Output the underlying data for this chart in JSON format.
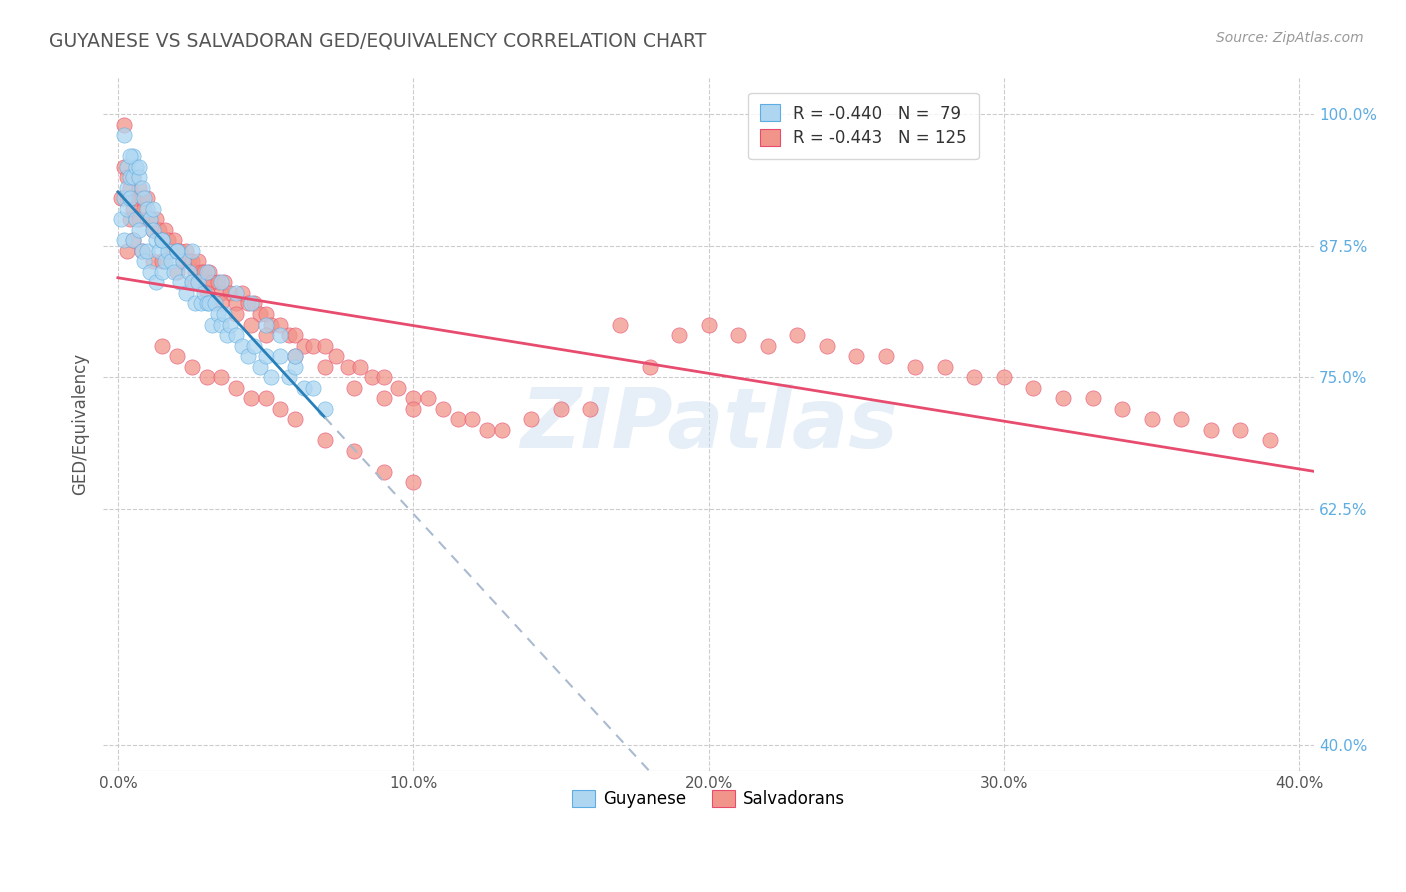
{
  "title": "GUYANESE VS SALVADORAN GED/EQUIVALENCY CORRELATION CHART",
  "source": "Source: ZipAtlas.com",
  "ylabel": "GED/Equivalency",
  "xlim": [
    -0.005,
    0.405
  ],
  "ylim": [
    0.375,
    1.035
  ],
  "xticks": [
    0.0,
    0.05,
    0.1,
    0.15,
    0.2,
    0.25,
    0.3,
    0.35,
    0.4
  ],
  "xticklabels_major": [
    "0.0%",
    "",
    "10.0%",
    "",
    "20.0%",
    "",
    "30.0%",
    "",
    "40.0%"
  ],
  "yticks": [
    0.4,
    0.625,
    0.75,
    0.875,
    1.0
  ],
  "yticklabels": [
    "40.0%",
    "62.5%",
    "75.0%",
    "87.5%",
    "100.0%"
  ],
  "legend_r1": "R = -0.440",
  "legend_n1": "N =  79",
  "legend_r2": "R = -0.443",
  "legend_n2": "N = 125",
  "legend_label1": "Guyanese",
  "legend_label2": "Salvadorans",
  "blue_fill": "#AED6F1",
  "blue_edge": "#5DADE2",
  "pink_fill": "#F1948A",
  "pink_edge": "#E74C6F",
  "blue_line": "#2980B9",
  "pink_line": "#E74C6F",
  "dash_color": "#AABBD0",
  "title_color": "#555555",
  "grid_color": "#CCCCCC",
  "yaxis_tick_color": "#5DADE2",
  "source_color": "#999999",
  "watermark_text": "ZIPat⁠las",
  "watermark_color": "#DDEEFF",
  "blue_scatter_x": [
    0.001,
    0.002,
    0.002,
    0.003,
    0.003,
    0.003,
    0.004,
    0.004,
    0.005,
    0.005,
    0.005,
    0.006,
    0.006,
    0.007,
    0.007,
    0.008,
    0.008,
    0.009,
    0.009,
    0.01,
    0.01,
    0.011,
    0.011,
    0.012,
    0.013,
    0.013,
    0.014,
    0.015,
    0.015,
    0.016,
    0.017,
    0.018,
    0.019,
    0.02,
    0.021,
    0.022,
    0.023,
    0.024,
    0.025,
    0.026,
    0.027,
    0.028,
    0.029,
    0.03,
    0.031,
    0.032,
    0.033,
    0.034,
    0.035,
    0.036,
    0.037,
    0.038,
    0.04,
    0.042,
    0.044,
    0.046,
    0.048,
    0.05,
    0.052,
    0.055,
    0.058,
    0.06,
    0.063,
    0.066,
    0.07,
    0.015,
    0.02,
    0.025,
    0.03,
    0.035,
    0.04,
    0.045,
    0.05,
    0.055,
    0.06,
    0.002,
    0.004,
    0.007,
    0.012
  ],
  "blue_scatter_y": [
    0.9,
    0.92,
    0.88,
    0.95,
    0.93,
    0.91,
    0.94,
    0.92,
    0.96,
    0.94,
    0.88,
    0.95,
    0.9,
    0.94,
    0.89,
    0.93,
    0.87,
    0.92,
    0.86,
    0.91,
    0.87,
    0.9,
    0.85,
    0.89,
    0.88,
    0.84,
    0.87,
    0.88,
    0.85,
    0.86,
    0.87,
    0.86,
    0.85,
    0.87,
    0.84,
    0.86,
    0.83,
    0.85,
    0.84,
    0.82,
    0.84,
    0.82,
    0.83,
    0.82,
    0.82,
    0.8,
    0.82,
    0.81,
    0.8,
    0.81,
    0.79,
    0.8,
    0.79,
    0.78,
    0.77,
    0.78,
    0.76,
    0.77,
    0.75,
    0.77,
    0.75,
    0.76,
    0.74,
    0.74,
    0.72,
    0.88,
    0.87,
    0.87,
    0.85,
    0.84,
    0.83,
    0.82,
    0.8,
    0.79,
    0.77,
    0.98,
    0.96,
    0.95,
    0.91
  ],
  "pink_scatter_x": [
    0.001,
    0.002,
    0.003,
    0.003,
    0.004,
    0.004,
    0.005,
    0.005,
    0.006,
    0.007,
    0.007,
    0.008,
    0.009,
    0.01,
    0.01,
    0.011,
    0.012,
    0.013,
    0.014,
    0.015,
    0.016,
    0.017,
    0.018,
    0.019,
    0.02,
    0.021,
    0.022,
    0.023,
    0.024,
    0.025,
    0.026,
    0.027,
    0.028,
    0.029,
    0.03,
    0.031,
    0.032,
    0.034,
    0.035,
    0.036,
    0.038,
    0.04,
    0.042,
    0.044,
    0.046,
    0.048,
    0.05,
    0.052,
    0.055,
    0.058,
    0.06,
    0.063,
    0.066,
    0.07,
    0.074,
    0.078,
    0.082,
    0.086,
    0.09,
    0.095,
    0.1,
    0.105,
    0.11,
    0.115,
    0.12,
    0.125,
    0.13,
    0.14,
    0.15,
    0.16,
    0.17,
    0.18,
    0.19,
    0.2,
    0.21,
    0.22,
    0.23,
    0.24,
    0.25,
    0.26,
    0.27,
    0.28,
    0.29,
    0.3,
    0.31,
    0.32,
    0.33,
    0.34,
    0.35,
    0.36,
    0.37,
    0.38,
    0.39,
    0.003,
    0.005,
    0.008,
    0.012,
    0.015,
    0.02,
    0.025,
    0.03,
    0.035,
    0.04,
    0.045,
    0.05,
    0.06,
    0.07,
    0.08,
    0.09,
    0.1,
    0.015,
    0.02,
    0.025,
    0.03,
    0.035,
    0.04,
    0.045,
    0.05,
    0.055,
    0.06,
    0.07,
    0.08,
    0.09,
    0.1,
    0.002
  ],
  "pink_scatter_y": [
    0.92,
    0.95,
    0.94,
    0.92,
    0.93,
    0.9,
    0.94,
    0.91,
    0.92,
    0.93,
    0.9,
    0.92,
    0.91,
    0.92,
    0.9,
    0.9,
    0.89,
    0.9,
    0.89,
    0.88,
    0.89,
    0.88,
    0.87,
    0.88,
    0.87,
    0.87,
    0.86,
    0.87,
    0.86,
    0.86,
    0.85,
    0.86,
    0.85,
    0.85,
    0.84,
    0.85,
    0.84,
    0.84,
    0.83,
    0.84,
    0.83,
    0.82,
    0.83,
    0.82,
    0.82,
    0.81,
    0.81,
    0.8,
    0.8,
    0.79,
    0.79,
    0.78,
    0.78,
    0.78,
    0.77,
    0.76,
    0.76,
    0.75,
    0.75,
    0.74,
    0.73,
    0.73,
    0.72,
    0.71,
    0.71,
    0.7,
    0.7,
    0.71,
    0.72,
    0.72,
    0.8,
    0.76,
    0.79,
    0.8,
    0.79,
    0.78,
    0.79,
    0.78,
    0.77,
    0.77,
    0.76,
    0.76,
    0.75,
    0.75,
    0.74,
    0.73,
    0.73,
    0.72,
    0.71,
    0.71,
    0.7,
    0.7,
    0.69,
    0.87,
    0.88,
    0.87,
    0.86,
    0.86,
    0.85,
    0.84,
    0.83,
    0.82,
    0.81,
    0.8,
    0.79,
    0.77,
    0.76,
    0.74,
    0.73,
    0.72,
    0.78,
    0.77,
    0.76,
    0.75,
    0.75,
    0.74,
    0.73,
    0.73,
    0.72,
    0.71,
    0.69,
    0.68,
    0.66,
    0.65,
    0.99
  ]
}
